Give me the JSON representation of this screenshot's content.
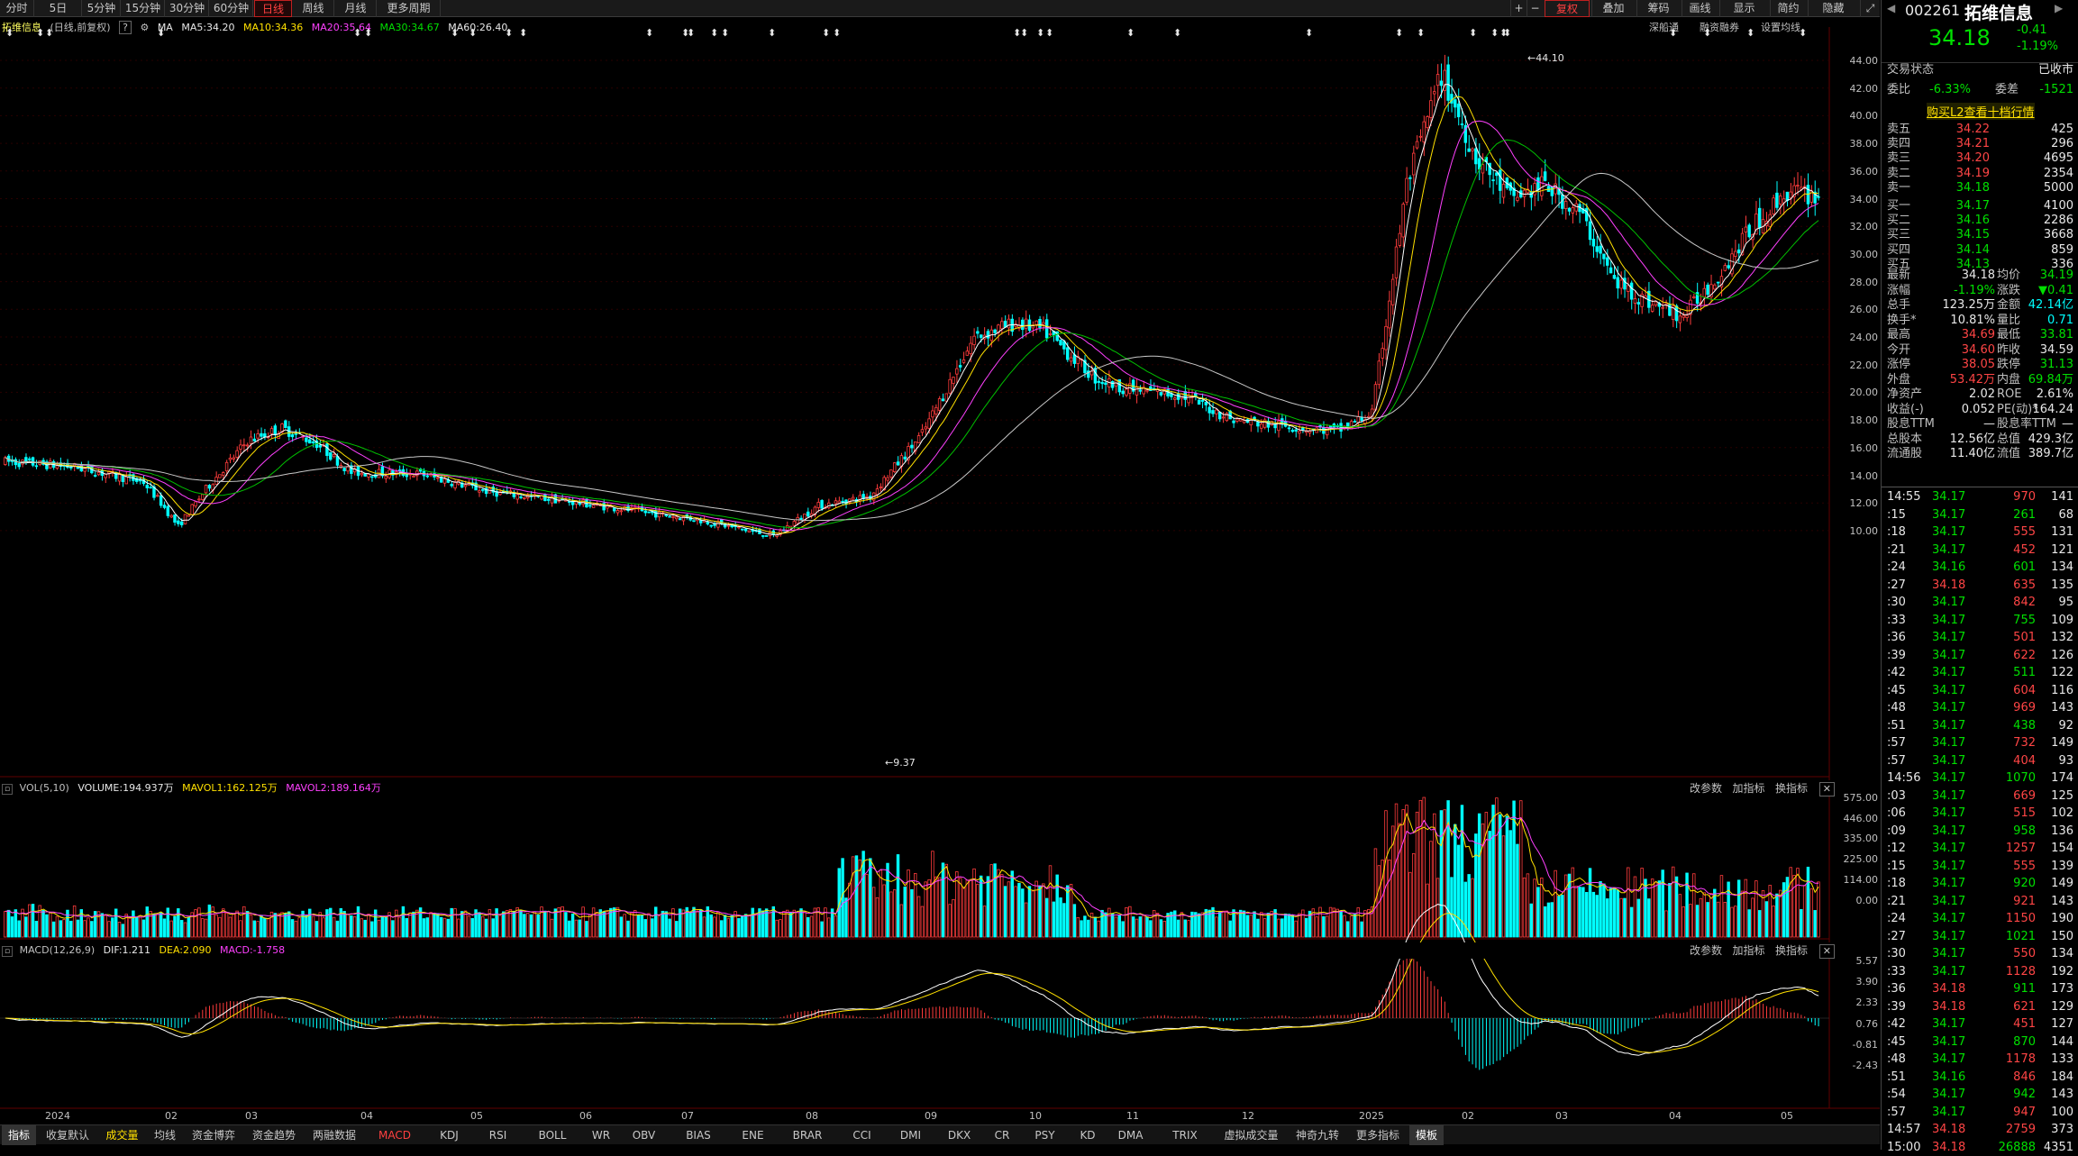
{
  "periods": [
    "分时",
    "5日",
    "5分钟",
    "15分钟",
    "30分钟",
    "60分钟",
    "日线",
    "周线",
    "月线",
    "更多周期"
  ],
  "toolbar_right": [
    "复权",
    "叠加",
    "筹码",
    "画线",
    "显示",
    "简约",
    "隐藏"
  ],
  "info": {
    "name": "拓维信息",
    "mode": "(日线,前复权)",
    "ma": "MA",
    "ma5": "MA5:34.20",
    "ma10": "MA10:34.36",
    "ma20": "MA20:35.64",
    "ma30": "MA30:34.67",
    "ma60": "MA60:26.40"
  },
  "header_right": [
    "深船通",
    "融资融券",
    "设置均线"
  ],
  "y_labels": [
    "44.00",
    "42.00",
    "40.00",
    "38.00",
    "36.00",
    "34.00",
    "32.00",
    "30.00",
    "28.00",
    "26.00",
    "24.00",
    "22.00",
    "20.00",
    "18.00",
    "16.00",
    "14.00",
    "12.00",
    "10.00"
  ],
  "max_label": "44.10",
  "min_label": "9.37",
  "vol": {
    "title": "VOL(5,10)",
    "volume": "VOLUME:194.937万",
    "mavol1": "MAVOL1:162.125万",
    "mavol2": "MAVOL2:189.164万",
    "y": [
      "575.00",
      "446.00",
      "335.00",
      "225.00",
      "114.00",
      "0.00"
    ]
  },
  "macd": {
    "title": "MACD(12,26,9)",
    "dif": "DIF:1.211",
    "dea": "DEA:2.090",
    "macd": "MACD:-1.758",
    "y": [
      "5.57",
      "3.90",
      "2.33",
      "0.76",
      "-0.81",
      "-2.43"
    ]
  },
  "sub_btns": [
    "改参数",
    "加指标",
    "换指标"
  ],
  "x_labels": [
    "2024",
    "02",
    "03",
    "04",
    "05",
    "06",
    "07",
    "08",
    "09",
    "10",
    "11",
    "12",
    "2025",
    "02",
    "03",
    "04",
    "05"
  ],
  "indicators": [
    "指标",
    "收复默认",
    "成交量",
    "均线",
    "资金博弈",
    "资金趋势",
    "两融数据",
    "MACD",
    "KDJ",
    "RSI",
    "BOLL",
    "WR",
    "OBV",
    "BIAS",
    "ENE",
    "BRAR",
    "CCI",
    "DMI",
    "DKX",
    "CR",
    "PSY",
    "KD",
    "DMA",
    "TRIX",
    "虚拟成交量",
    "神奇九转",
    "更多指标",
    "模板"
  ],
  "stock": {
    "code": "002261",
    "name": "拓维信息",
    "price": "34.18",
    "change": "-0.41",
    "pct": "-1.19%"
  },
  "status": {
    "label": "交易状态",
    "value": "已收市"
  },
  "weibi": {
    "l1": "委比",
    "v1": "-6.33%",
    "l2": "委差",
    "v2": "-1521"
  },
  "l2_link": "购买L2查看十档行情",
  "asks": [
    [
      "卖五",
      "34.22",
      "425"
    ],
    [
      "卖四",
      "34.21",
      "296"
    ],
    [
      "卖三",
      "34.20",
      "4695"
    ],
    [
      "卖二",
      "34.19",
      "2354"
    ],
    [
      "卖一",
      "34.18",
      "5000"
    ]
  ],
  "bids": [
    [
      "买一",
      "34.17",
      "4100"
    ],
    [
      "买二",
      "34.16",
      "2286"
    ],
    [
      "买三",
      "34.15",
      "3668"
    ],
    [
      "买四",
      "34.14",
      "859"
    ],
    [
      "买五",
      "34.13",
      "336"
    ]
  ],
  "quote": [
    [
      "最新",
      "34.18",
      "均价",
      "34.19"
    ],
    [
      "涨幅",
      "-1.19%",
      "涨跌",
      "▼0.41"
    ],
    [
      "总手",
      "123.25万",
      "金额",
      "42.14亿"
    ],
    [
      "换手*",
      "10.81%",
      "量比",
      "0.71"
    ],
    [
      "最高",
      "34.69",
      "最低",
      "33.81"
    ],
    [
      "今开",
      "34.60",
      "昨收",
      "34.59"
    ],
    [
      "涨停",
      "38.05",
      "跌停",
      "31.13"
    ],
    [
      "外盘",
      "53.42万",
      "内盘",
      "69.84万"
    ],
    [
      "净资产",
      "2.02",
      "ROE",
      "2.61%"
    ],
    [
      "收益(-)",
      "0.052",
      "PE(动)*",
      "164.24"
    ],
    [
      "股息TTM",
      "—",
      "股息率TTM",
      "—"
    ],
    [
      "总股本",
      "12.56亿",
      "总值",
      "429.3亿"
    ],
    [
      "流通股",
      "11.40亿",
      "流值",
      "389.7亿"
    ]
  ],
  "ticks": [
    [
      "14:55",
      "34.17",
      "970",
      "141"
    ],
    [
      ":15",
      "34.17",
      "261",
      "68"
    ],
    [
      ":18",
      "34.17",
      "555",
      "131"
    ],
    [
      ":21",
      "34.17",
      "452",
      "121"
    ],
    [
      ":24",
      "34.16",
      "601",
      "134"
    ],
    [
      ":27",
      "34.18",
      "635",
      "135"
    ],
    [
      ":30",
      "34.17",
      "842",
      "95"
    ],
    [
      ":33",
      "34.17",
      "755",
      "109"
    ],
    [
      ":36",
      "34.17",
      "501",
      "132"
    ],
    [
      ":39",
      "34.17",
      "622",
      "126"
    ],
    [
      ":42",
      "34.17",
      "511",
      "122"
    ],
    [
      ":45",
      "34.17",
      "604",
      "116"
    ],
    [
      ":48",
      "34.17",
      "969",
      "143"
    ],
    [
      ":51",
      "34.17",
      "438",
      "92"
    ],
    [
      ":57",
      "34.17",
      "732",
      "149"
    ],
    [
      ":57",
      "34.17",
      "404",
      "93"
    ],
    [
      "14:56",
      "34.17",
      "1070",
      "174"
    ],
    [
      ":03",
      "34.17",
      "669",
      "125"
    ],
    [
      ":06",
      "34.17",
      "515",
      "102"
    ],
    [
      ":09",
      "34.17",
      "958",
      "136"
    ],
    [
      ":12",
      "34.17",
      "1257",
      "154"
    ],
    [
      ":15",
      "34.17",
      "555",
      "139"
    ],
    [
      ":18",
      "34.17",
      "920",
      "149"
    ],
    [
      ":21",
      "34.17",
      "921",
      "143"
    ],
    [
      ":24",
      "34.17",
      "1150",
      "190"
    ],
    [
      ":27",
      "34.17",
      "1021",
      "150"
    ],
    [
      ":30",
      "34.17",
      "550",
      "134"
    ],
    [
      ":33",
      "34.17",
      "1128",
      "192"
    ],
    [
      ":36",
      "34.18",
      "911",
      "173"
    ],
    [
      ":39",
      "34.18",
      "621",
      "129"
    ],
    [
      ":42",
      "34.17",
      "451",
      "127"
    ],
    [
      ":45",
      "34.17",
      "870",
      "144"
    ],
    [
      ":48",
      "34.17",
      "1178",
      "133"
    ],
    [
      ":51",
      "34.16",
      "846",
      "184"
    ],
    [
      ":54",
      "34.17",
      "942",
      "143"
    ],
    [
      ":57",
      "34.17",
      "947",
      "100"
    ],
    [
      "14:57",
      "34.18",
      "2759",
      "373"
    ],
    [
      "15:00",
      "34.18",
      "26888",
      "4351"
    ]
  ]
}
